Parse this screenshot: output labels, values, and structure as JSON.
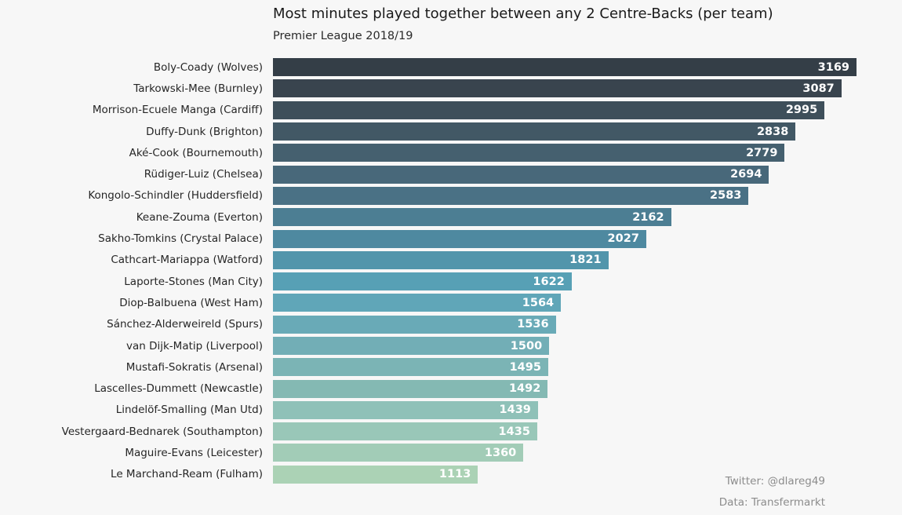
{
  "chart_data": {
    "type": "bar",
    "orientation": "horizontal",
    "title": "Most minutes played together between any 2 Centre-Backs (per team)",
    "subtitle": "Premier League 2018/19",
    "categories": [
      "Boly-Coady (Wolves)",
      "Tarkowski-Mee (Burnley)",
      "Morrison-Ecuele Manga (Cardiff)",
      "Duffy-Dunk (Brighton)",
      "Aké-Cook (Bournemouth)",
      "Rüdiger-Luiz (Chelsea)",
      "Kongolo-Schindler (Huddersfield)",
      "Keane-Zouma (Everton)",
      "Sakho-Tomkins (Crystal Palace)",
      "Cathcart-Mariappa (Watford)",
      "Laporte-Stones (Man City)",
      "Diop-Balbuena (West Ham)",
      "Sánchez-Alderweireld (Spurs)",
      "van Dijk-Matip (Liverpool)",
      "Mustafi-Sokratis (Arsenal)",
      "Lascelles-Dummett (Newcastle)",
      "Lindelöf-Smalling (Man Utd)",
      "Vestergaard-Bednarek (Southampton)",
      "Maguire-Evans (Leicester)",
      "Le Marchand-Ream (Fulham)"
    ],
    "values": [
      3169,
      3087,
      2995,
      2838,
      2779,
      2694,
      2583,
      2162,
      2027,
      1821,
      1622,
      1564,
      1536,
      1500,
      1495,
      1492,
      1439,
      1435,
      1360,
      1113
    ],
    "xlim": [
      0,
      3416
    ],
    "grid": false,
    "legend": "none",
    "bar_colors": [
      "#343e47",
      "#39444e",
      "#3e4f5a",
      "#425865",
      "#45606f",
      "#48687a",
      "#4a7185",
      "#4c7e93",
      "#4e89a0",
      "#5295ab",
      "#57a0b5",
      "#60a6b8",
      "#69aab7",
      "#72aeb6",
      "#7bb4b5",
      "#84b9b3",
      "#8fc1b8",
      "#99c7b8",
      "#a2ccb7",
      "#abd2b5"
    ],
    "value_label_color": "#ffffff"
  },
  "credits": {
    "twitter": "Twitter: @dlareg49",
    "source": "Data: Transfermarkt"
  },
  "colors": {
    "background": "#f7f7f7",
    "title_text": "#1a1a1a",
    "label_text": "#262626",
    "credits_text": "#8c8c8c"
  }
}
